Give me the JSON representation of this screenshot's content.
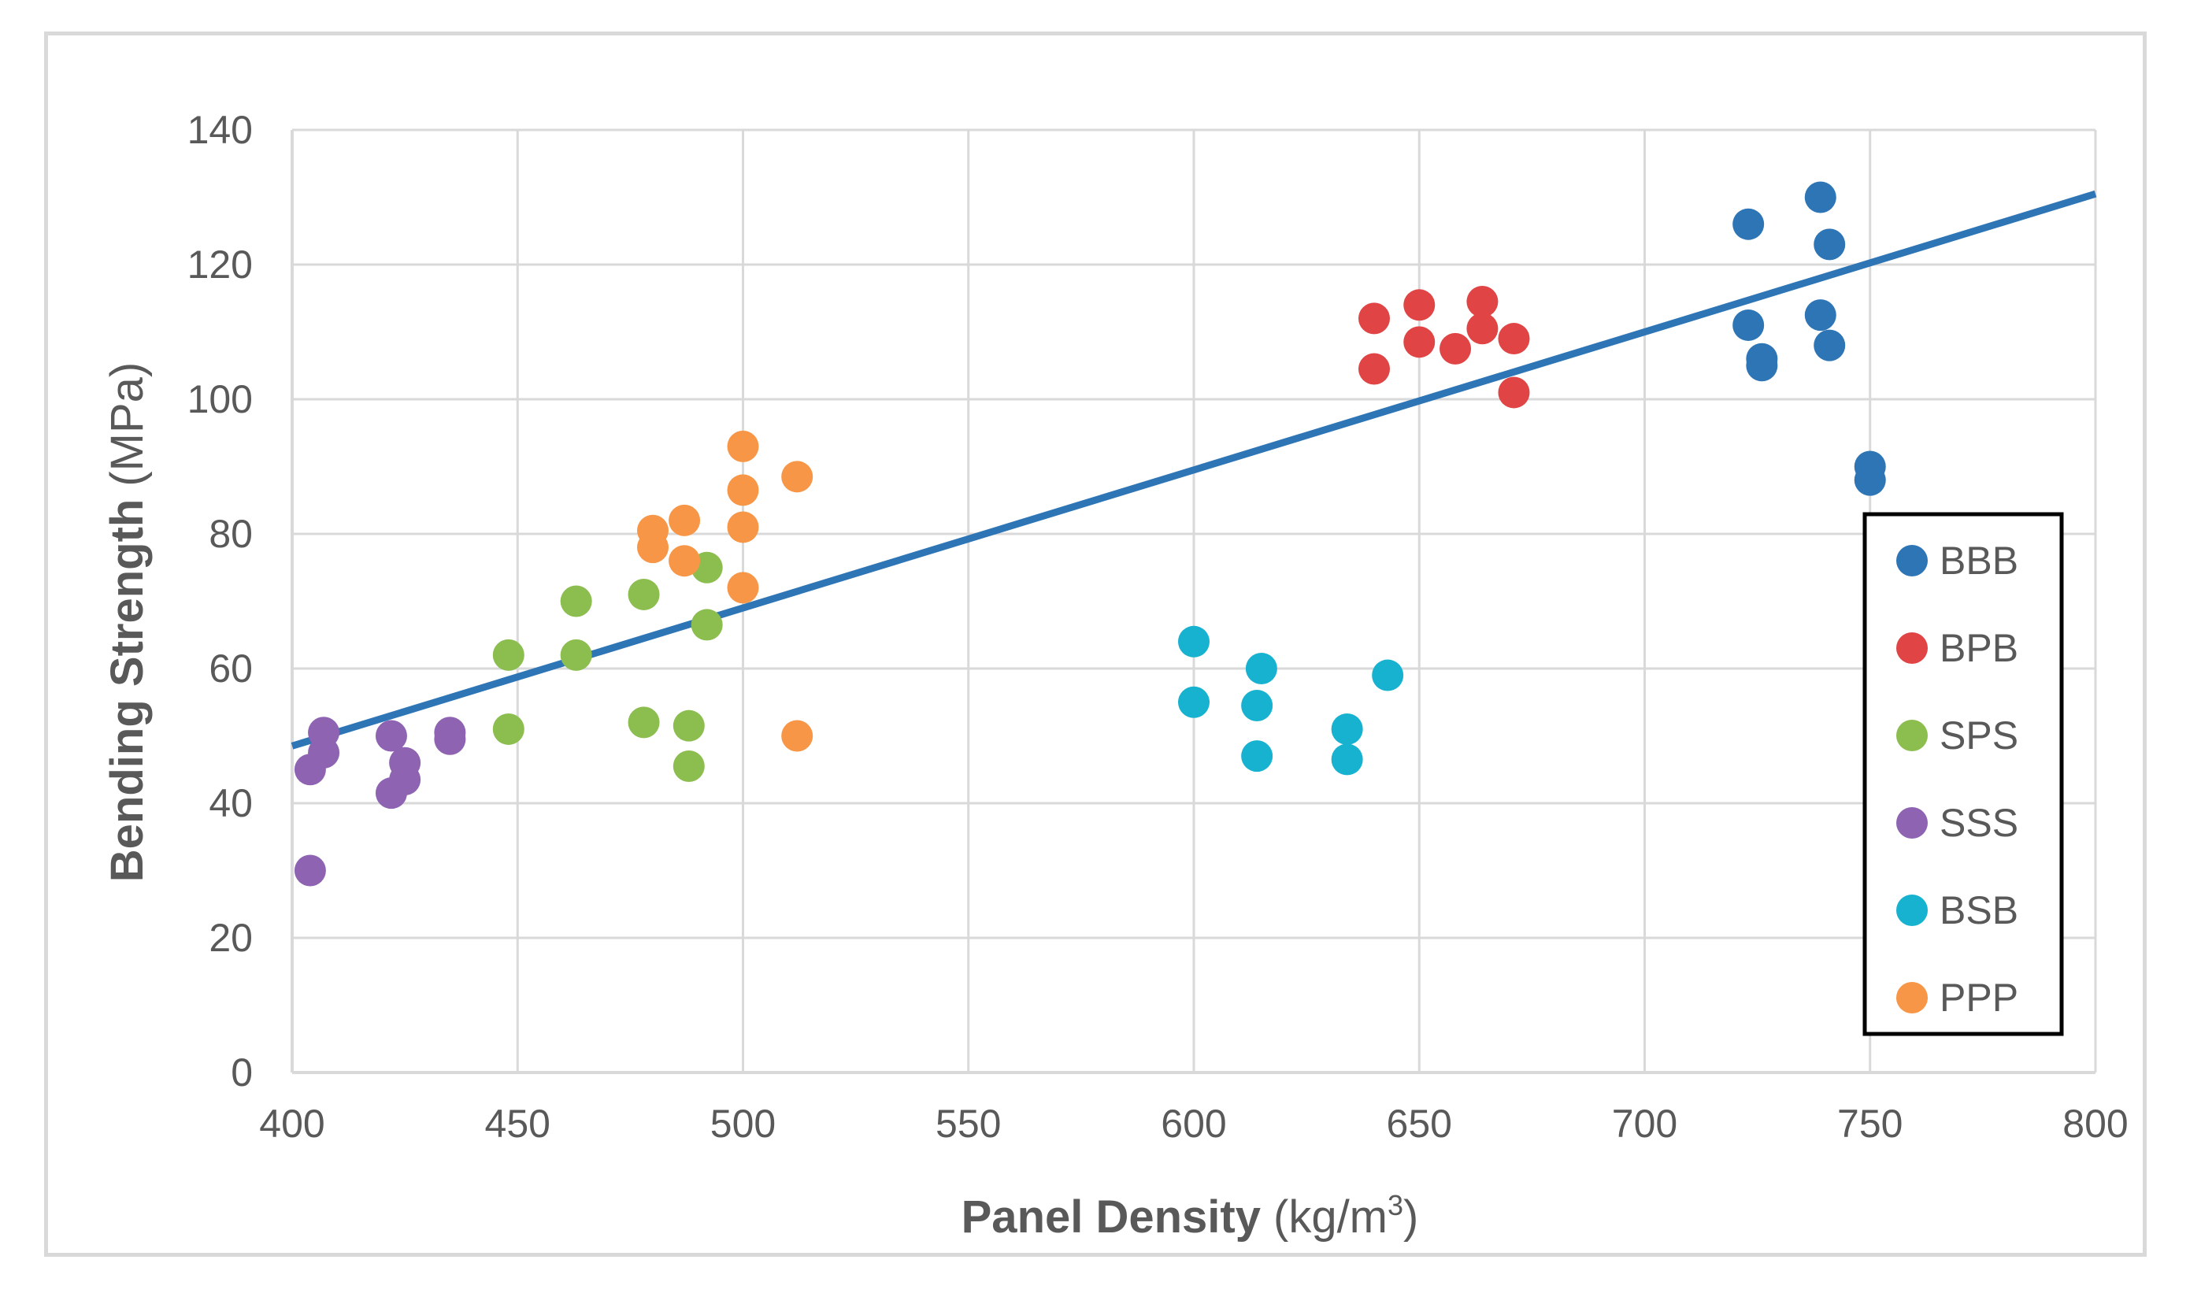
{
  "chart_data": {
    "type": "scatter",
    "title": "",
    "xlabel_bold": "Panel Density",
    "xlabel_unit_pre": "(kg/m",
    "xlabel_unit_sup": "3",
    "xlabel_unit_post": ")",
    "ylabel_bold": "Bending Strength",
    "ylabel_unit": "(MPa)",
    "xlim": [
      400,
      800
    ],
    "ylim": [
      0,
      140
    ],
    "x_ticks": [
      "400",
      "450",
      "500",
      "550",
      "600",
      "650",
      "700",
      "750",
      "800"
    ],
    "y_ticks": [
      "0",
      "20",
      "40",
      "60",
      "80",
      "100",
      "120",
      "140"
    ],
    "grid": true,
    "legend_position": "right",
    "series": [
      {
        "name": "BBB",
        "color": "#2e75b6",
        "points": [
          [
            723,
            126
          ],
          [
            723,
            111
          ],
          [
            726,
            106
          ],
          [
            726,
            105
          ],
          [
            739,
            130
          ],
          [
            739,
            112.5
          ],
          [
            741,
            123
          ],
          [
            741,
            108
          ],
          [
            750,
            90
          ],
          [
            750,
            88
          ]
        ]
      },
      {
        "name": "BPB",
        "color": "#e04444",
        "points": [
          [
            640,
            112
          ],
          [
            640,
            104.5
          ],
          [
            650,
            114
          ],
          [
            650,
            108.5
          ],
          [
            658,
            107.5
          ],
          [
            664,
            114.5
          ],
          [
            664,
            110.5
          ],
          [
            671,
            109
          ],
          [
            671,
            101
          ]
        ]
      },
      {
        "name": "SPS",
        "color": "#8cbd4f",
        "points": [
          [
            448,
            62
          ],
          [
            448,
            51
          ],
          [
            463,
            70
          ],
          [
            463,
            62
          ],
          [
            478,
            71
          ],
          [
            478,
            52
          ],
          [
            488,
            51.5
          ],
          [
            488,
            45.5
          ],
          [
            492,
            75
          ],
          [
            492,
            66.5
          ]
        ]
      },
      {
        "name": "SSS",
        "color": "#8e63b2",
        "points": [
          [
            404,
            30
          ],
          [
            404,
            45
          ],
          [
            407,
            50.5
          ],
          [
            407,
            47.5
          ],
          [
            422,
            50
          ],
          [
            422,
            41.5
          ],
          [
            425,
            46
          ],
          [
            425,
            43.5
          ],
          [
            435,
            50.5
          ],
          [
            435,
            49.5
          ]
        ]
      },
      {
        "name": "BSB",
        "color": "#17b2cf",
        "points": [
          [
            600,
            64
          ],
          [
            600,
            55
          ],
          [
            614,
            54.5
          ],
          [
            614,
            47
          ],
          [
            615,
            60
          ],
          [
            634,
            51
          ],
          [
            634,
            46.5
          ],
          [
            643,
            59
          ]
        ]
      },
      {
        "name": "PPP",
        "color": "#f79646",
        "points": [
          [
            480,
            80.5
          ],
          [
            480,
            78
          ],
          [
            487,
            82
          ],
          [
            487,
            76
          ],
          [
            500,
            93
          ],
          [
            500,
            86.5
          ],
          [
            500,
            81
          ],
          [
            500,
            72
          ],
          [
            512,
            88.5
          ],
          [
            512,
            50
          ]
        ]
      }
    ],
    "trendline": {
      "color": "#2e75b6",
      "x": [
        400,
        800
      ],
      "y": [
        48.5,
        130.5
      ]
    }
  }
}
